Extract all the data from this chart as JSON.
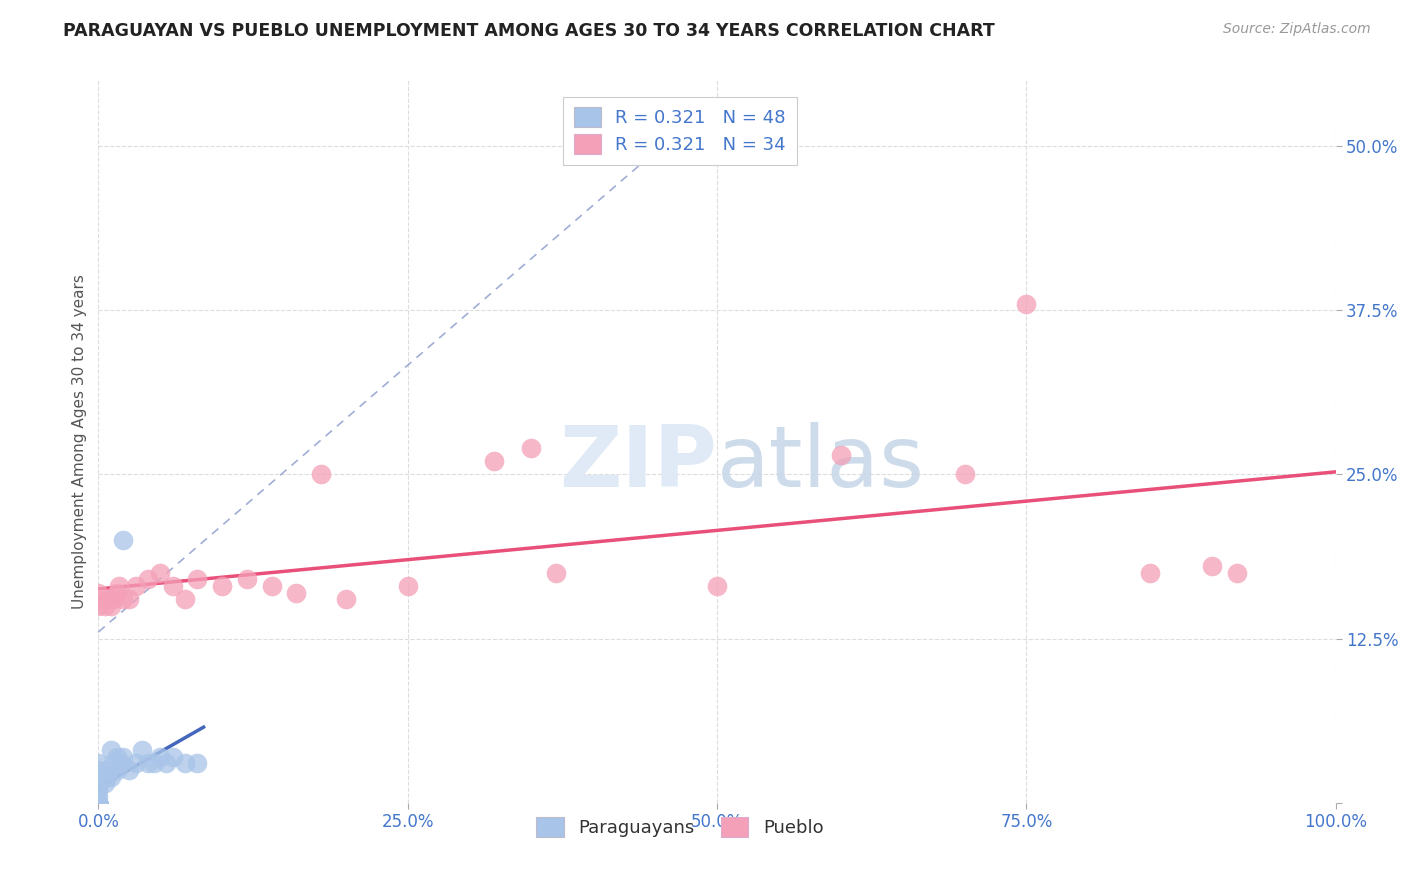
{
  "title": "PARAGUAYAN VS PUEBLO UNEMPLOYMENT AMONG AGES 30 TO 34 YEARS CORRELATION CHART",
  "source": "Source: ZipAtlas.com",
  "ylabel": "Unemployment Among Ages 30 to 34 years",
  "xlim": [
    0.0,
    1.0
  ],
  "ylim": [
    0.0,
    0.55
  ],
  "xticks": [
    0.0,
    0.25,
    0.5,
    0.75,
    1.0
  ],
  "xticklabels": [
    "0.0%",
    "25.0%",
    "50.0%",
    "75.0%",
    "100.0%"
  ],
  "yticks": [
    0.0,
    0.125,
    0.25,
    0.375,
    0.5
  ],
  "yticklabels": [
    "",
    "12.5%",
    "25.0%",
    "37.5%",
    "50.0%"
  ],
  "R_paraguayan": 0.321,
  "N_paraguayan": 48,
  "R_pueblo": 0.321,
  "N_pueblo": 34,
  "paraguayan_color": "#a8c4e8",
  "pueblo_color": "#f4a0b8",
  "paraguayan_line_color": "#4466bb",
  "pueblo_line_color": "#e8507a",
  "refline_color": "#8899cc",
  "tick_color": "#4477cc",
  "background_color": "#ffffff",
  "par_x": [
    0.0,
    0.0,
    0.0,
    0.0,
    0.0,
    0.0,
    0.0,
    0.0,
    0.0,
    0.0,
    0.0,
    0.0,
    0.0,
    0.0,
    0.0,
    0.0,
    0.0,
    0.0,
    0.0,
    0.0,
    0.0,
    0.0,
    0.0,
    0.0,
    0.0,
    0.0,
    0.0,
    0.005,
    0.007,
    0.008,
    0.01,
    0.01,
    0.012,
    0.015,
    0.015,
    0.018,
    0.02,
    0.02,
    0.025,
    0.03,
    0.035,
    0.04,
    0.045,
    0.05,
    0.055,
    0.06,
    0.07,
    0.08
  ],
  "par_y": [
    0.0,
    0.0,
    0.0,
    0.0,
    0.0,
    0.0,
    0.0,
    0.0,
    0.0,
    0.0,
    0.0,
    0.0,
    0.0,
    0.0,
    0.0,
    0.0,
    0.0,
    0.0,
    0.0,
    0.0,
    0.005,
    0.01,
    0.012,
    0.015,
    0.02,
    0.025,
    0.03,
    0.015,
    0.02,
    0.025,
    0.02,
    0.04,
    0.03,
    0.025,
    0.035,
    0.03,
    0.035,
    0.2,
    0.025,
    0.03,
    0.04,
    0.03,
    0.03,
    0.035,
    0.03,
    0.035,
    0.03,
    0.03
  ],
  "pue_x": [
    0.0,
    0.0,
    0.0,
    0.005,
    0.008,
    0.01,
    0.012,
    0.015,
    0.017,
    0.02,
    0.025,
    0.03,
    0.04,
    0.05,
    0.06,
    0.07,
    0.08,
    0.1,
    0.12,
    0.14,
    0.16,
    0.18,
    0.2,
    0.25,
    0.32,
    0.35,
    0.37,
    0.5,
    0.6,
    0.7,
    0.75,
    0.85,
    0.9,
    0.92
  ],
  "pue_y": [
    0.15,
    0.155,
    0.16,
    0.15,
    0.155,
    0.15,
    0.155,
    0.16,
    0.165,
    0.155,
    0.155,
    0.165,
    0.17,
    0.175,
    0.165,
    0.155,
    0.17,
    0.165,
    0.17,
    0.165,
    0.16,
    0.25,
    0.155,
    0.165,
    0.26,
    0.27,
    0.175,
    0.165,
    0.265,
    0.25,
    0.38,
    0.175,
    0.18,
    0.175
  ]
}
